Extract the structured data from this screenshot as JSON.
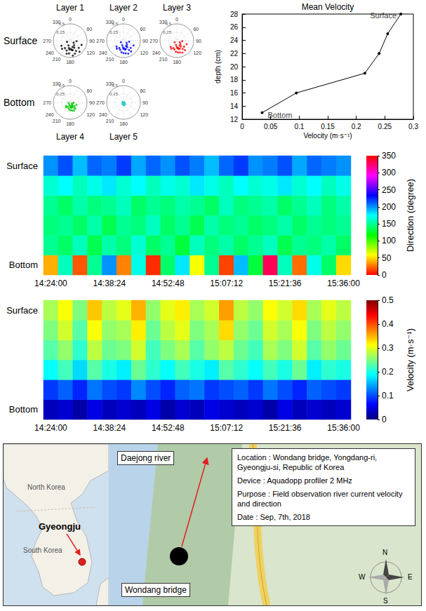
{
  "chart_data": [
    {
      "type": "polar_scatter",
      "annotations": [
        "Surface",
        "Bottom"
      ],
      "rlim": [
        0,
        0.5
      ],
      "rticks": [
        0.25,
        0.5
      ],
      "thetalim": [
        0,
        360
      ],
      "thetaticks": [
        0,
        60,
        90,
        120,
        180,
        210,
        240,
        270,
        330
      ],
      "grid": true,
      "series": [
        {
          "name": "Layer 1",
          "color": "#000000",
          "values": [
            [
              0.28,
              170
            ],
            [
              0.35,
              150
            ],
            [
              0.22,
              190
            ],
            [
              0.41,
              160
            ],
            [
              0.18,
              140
            ],
            [
              0.31,
              200
            ],
            [
              0.25,
              175
            ],
            [
              0.38,
              185
            ],
            [
              0.12,
              120
            ],
            [
              0.33,
              130
            ],
            [
              0.27,
              215
            ],
            [
              0.45,
              170
            ],
            [
              0.2,
              160
            ],
            [
              0.3,
              240
            ],
            [
              0.15,
              200
            ],
            [
              0.36,
              110
            ],
            [
              0.24,
              150
            ],
            [
              0.4,
              195
            ],
            [
              0.1,
              250
            ],
            [
              0.29,
              165
            ],
            [
              0.34,
              225
            ],
            [
              0.19,
              95
            ],
            [
              0.43,
              140
            ],
            [
              0.26,
              185
            ]
          ]
        },
        {
          "name": "Layer 2",
          "color": "#0000ff",
          "values": [
            [
              0.26,
              165
            ],
            [
              0.32,
              150
            ],
            [
              0.2,
              185
            ],
            [
              0.38,
              170
            ],
            [
              0.16,
              140
            ],
            [
              0.29,
              200
            ],
            [
              0.23,
              175
            ],
            [
              0.35,
              190
            ],
            [
              0.11,
              125
            ],
            [
              0.3,
              135
            ],
            [
              0.25,
              210
            ],
            [
              0.41,
              160
            ],
            [
              0.18,
              155
            ],
            [
              0.27,
              230
            ],
            [
              0.14,
              195
            ],
            [
              0.33,
              115
            ],
            [
              0.22,
              150
            ],
            [
              0.37,
              180
            ],
            [
              0.09,
              240
            ],
            [
              0.27,
              170
            ],
            [
              0.31,
              220
            ],
            [
              0.17,
              100
            ],
            [
              0.39,
              145
            ],
            [
              0.24,
              180
            ]
          ]
        },
        {
          "name": "Layer 3",
          "color": "#ff0000",
          "values": [
            [
              0.25,
              160
            ],
            [
              0.3,
              145
            ],
            [
              0.19,
              180
            ],
            [
              0.36,
              165
            ],
            [
              0.15,
              135
            ],
            [
              0.27,
              195
            ],
            [
              0.22,
              170
            ],
            [
              0.33,
              185
            ],
            [
              0.1,
              120
            ],
            [
              0.28,
              130
            ],
            [
              0.24,
              205
            ],
            [
              0.39,
              155
            ],
            [
              0.17,
              150
            ],
            [
              0.26,
              225
            ],
            [
              0.13,
              190
            ],
            [
              0.31,
              110
            ],
            [
              0.21,
              145
            ],
            [
              0.35,
              175
            ],
            [
              0.08,
              235
            ],
            [
              0.26,
              165
            ],
            [
              0.29,
              215
            ],
            [
              0.16,
              95
            ],
            [
              0.37,
              140
            ],
            [
              0.23,
              175
            ]
          ]
        },
        {
          "name": "Layer 4",
          "color": "#00cc00",
          "values": [
            [
              0.15,
              160
            ],
            [
              0.2,
              145
            ],
            [
              0.11,
              180
            ],
            [
              0.25,
              165
            ],
            [
              0.09,
              135
            ],
            [
              0.18,
              195
            ],
            [
              0.14,
              170
            ],
            [
              0.22,
              185
            ],
            [
              0.06,
              120
            ],
            [
              0.17,
              130
            ],
            [
              0.15,
              210
            ],
            [
              0.27,
              155
            ],
            [
              0.1,
              150
            ],
            [
              0.16,
              230
            ],
            [
              0.08,
              200
            ],
            [
              0.2,
              110
            ],
            [
              0.13,
              145
            ],
            [
              0.23,
              175
            ],
            [
              0.05,
              250
            ],
            [
              0.16,
              165
            ],
            [
              0.19,
              220
            ],
            [
              0.1,
              95
            ],
            [
              0.24,
              140
            ],
            [
              0.14,
              175
            ]
          ]
        },
        {
          "name": "Layer 5",
          "color": "#33cccc",
          "values": [
            [
              0.04,
              170
            ],
            [
              0.06,
              150
            ],
            [
              0.03,
              200
            ],
            [
              0.08,
              165
            ],
            [
              0.02,
              120
            ],
            [
              0.05,
              190
            ],
            [
              0.04,
              140
            ],
            [
              0.07,
              180
            ],
            [
              0.02,
              250
            ],
            [
              0.05,
              160
            ],
            [
              0.06,
              210
            ],
            [
              0.09,
              175
            ],
            [
              0.03,
              100
            ],
            [
              0.05,
              230
            ],
            [
              0.03,
              300
            ],
            [
              0.07,
              135
            ],
            [
              0.04,
              160
            ],
            [
              0.06,
              185
            ],
            [
              0.02,
              60
            ],
            [
              0.05,
              170
            ]
          ]
        }
      ]
    },
    {
      "type": "line",
      "title": "Mean Velocity",
      "xlabel": "Velocity (m·s⁻¹)",
      "ylabel": "depth (cm)",
      "x": [
        0.035,
        0.095,
        0.215,
        0.24,
        0.255,
        0.278
      ],
      "values": [
        13,
        16,
        19,
        22,
        25,
        28
      ],
      "color": "#000000",
      "marker": "circle",
      "line_style": "solid",
      "xlim": [
        0,
        0.3
      ],
      "xticks": [
        0,
        0.05,
        0.1,
        0.15,
        0.2,
        0.25,
        0.3
      ],
      "ylim": [
        12,
        28
      ],
      "yticks": [
        12,
        14,
        16,
        18,
        20,
        22,
        24,
        26,
        28
      ],
      "grid": false,
      "annotations": [
        {
          "text": "Surface",
          "x": 0.278,
          "y": 28
        },
        {
          "text": "Bottom",
          "x": 0.035,
          "y": 13
        }
      ]
    },
    {
      "type": "heatmap",
      "x": [
        "14:24:00",
        null,
        null,
        null,
        "14:38:24",
        null,
        null,
        null,
        "14:52:48",
        null,
        null,
        null,
        "15:07:12",
        null,
        null,
        null,
        "15:21:36",
        null,
        null,
        null,
        "15:36:00"
      ],
      "y": [
        "Bottom",
        null,
        null,
        null,
        null,
        "Surface"
      ],
      "cells": [
        [
          40,
          160,
          20,
          150,
          200,
          30,
          170,
          10,
          140,
          180,
          60,
          150,
          15,
          190,
          130,
          330,
          160,
          25,
          170,
          140,
          50
        ],
        [
          150,
          140,
          160,
          135,
          155,
          145,
          165,
          140,
          150,
          130,
          160,
          145,
          155,
          140,
          150,
          160,
          135,
          150,
          145,
          155,
          140
        ],
        [
          145,
          150,
          140,
          155,
          135,
          150,
          145,
          160,
          140,
          150,
          135,
          155,
          145,
          150,
          140,
          145,
          155,
          140,
          150,
          145,
          150
        ],
        [
          150,
          140,
          155,
          145,
          150,
          160,
          140,
          150,
          145,
          155,
          150,
          140,
          160,
          145,
          150,
          155,
          140,
          150,
          160,
          145,
          155
        ],
        [
          165,
          175,
          160,
          170,
          180,
          165,
          175,
          160,
          170,
          165,
          180,
          170,
          160,
          175,
          165,
          170,
          180,
          165,
          175,
          160,
          170
        ],
        [
          200,
          215,
          190,
          210,
          205,
          220,
          195,
          210,
          200,
          215,
          205,
          190,
          210,
          220,
          200,
          205,
          215,
          195,
          210,
          205,
          200
        ]
      ],
      "colorbar": {
        "label": "Direction (degree)",
        "lim": [
          0,
          350
        ],
        "ticks": [
          0,
          50,
          100,
          150,
          200,
          250,
          300,
          350
        ],
        "colors": [
          "#ff0000",
          "#ffff00",
          "#00ff00",
          "#00ffff",
          "#0000ff",
          "#ff00ff",
          "#ff0000"
        ]
      }
    },
    {
      "type": "heatmap",
      "x": [
        "14:24:00",
        null,
        null,
        null,
        "14:38:24",
        null,
        null,
        null,
        "14:52:48",
        null,
        null,
        null,
        "15:07:12",
        null,
        null,
        null,
        "15:21:36",
        null,
        null,
        null,
        "15:36:00"
      ],
      "y": [
        "Bottom",
        null,
        null,
        null,
        null,
        "Surface"
      ],
      "cells": [
        [
          0.03,
          0.04,
          0.02,
          0.05,
          0.03,
          0.04,
          0.03,
          0.05,
          0.02,
          0.04,
          0.03,
          0.05,
          0.04,
          0.03,
          0.04,
          0.02,
          0.05,
          0.03,
          0.04,
          0.03,
          0.04
        ],
        [
          0.09,
          0.11,
          0.08,
          0.12,
          0.1,
          0.09,
          0.13,
          0.1,
          0.08,
          0.11,
          0.12,
          0.09,
          0.1,
          0.11,
          0.09,
          0.12,
          0.1,
          0.08,
          0.11,
          0.1,
          0.09
        ],
        [
          0.19,
          0.22,
          0.17,
          0.23,
          0.2,
          0.18,
          0.24,
          0.21,
          0.19,
          0.22,
          0.2,
          0.18,
          0.23,
          0.21,
          0.19,
          0.22,
          0.2,
          0.24,
          0.18,
          0.21,
          0.2
        ],
        [
          0.23,
          0.26,
          0.21,
          0.28,
          0.24,
          0.25,
          0.29,
          0.22,
          0.25,
          0.27,
          0.23,
          0.26,
          0.28,
          0.24,
          0.22,
          0.27,
          0.25,
          0.29,
          0.23,
          0.26,
          0.24
        ],
        [
          0.25,
          0.29,
          0.23,
          0.31,
          0.26,
          0.27,
          0.32,
          0.24,
          0.28,
          0.3,
          0.25,
          0.27,
          0.33,
          0.26,
          0.24,
          0.29,
          0.27,
          0.31,
          0.25,
          0.28,
          0.26
        ],
        [
          0.27,
          0.31,
          0.25,
          0.34,
          0.28,
          0.3,
          0.35,
          0.26,
          0.3,
          0.32,
          0.27,
          0.29,
          0.36,
          0.28,
          0.26,
          0.31,
          0.29,
          0.33,
          0.27,
          0.3,
          0.28
        ]
      ],
      "colorbar": {
        "label": "Velocity (m·s⁻¹)",
        "lim": [
          0,
          0.5
        ],
        "ticks": [
          0,
          0.1,
          0.2,
          0.3,
          0.4,
          0.5
        ],
        "colors": [
          "#00007f",
          "#0000ff",
          "#007fff",
          "#00ffff",
          "#7fff7f",
          "#ffff00",
          "#ff7f00",
          "#ff0000",
          "#7f0000"
        ]
      }
    }
  ],
  "map": {
    "inset": {
      "countries": [
        "North Korea",
        "South Korea"
      ],
      "marker": "Gyeongju"
    },
    "river": "Daejong river",
    "bridge": "Wondang bridge",
    "info": [
      "Location : Wondang bridge, Yongdang-ri, Gyeongju-si, Republic of Korea",
      "Device : Aquadopp profiler 2 MHz",
      "Purpose : Field observation river current velocity and direction",
      "Date : Sep, 7th, 2018"
    ],
    "compass": {
      "n": "N",
      "s": "S",
      "w": "W",
      "e": "E"
    }
  }
}
